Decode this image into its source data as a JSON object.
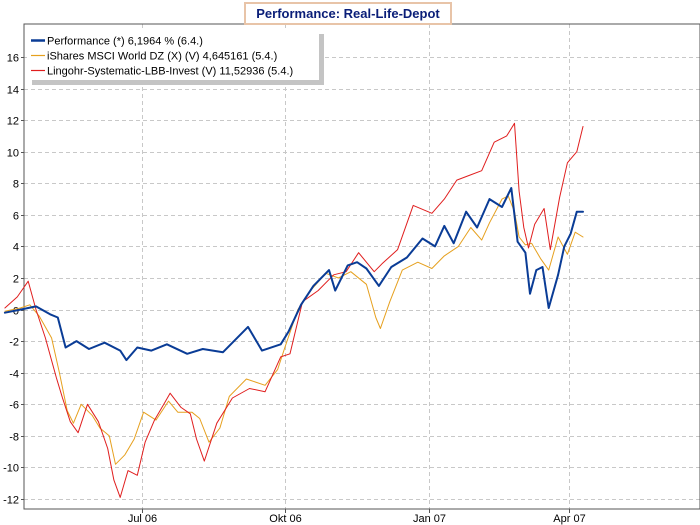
{
  "chart_data": {
    "type": "line",
    "title": "Performance: Real-Life-Depot",
    "xlabel": "",
    "ylabel": "",
    "ylim": [
      -12.5,
      18
    ],
    "xlim": [
      "2006-04-04",
      "2007-05-31"
    ],
    "yticks": [
      16,
      14,
      12,
      10,
      8,
      6,
      4,
      2,
      0,
      -2,
      -4,
      -6,
      -8,
      -10,
      -12
    ],
    "xticks": [
      {
        "label": "Jul 06",
        "date": "2006-07-01"
      },
      {
        "label": "Okt 06",
        "date": "2006-10-01"
      },
      {
        "label": "Jan 07",
        "date": "2007-01-01"
      },
      {
        "label": "Apr 07",
        "date": "2007-04-01"
      }
    ],
    "grid": true,
    "legend_placement": "top-left",
    "series": [
      {
        "name": "Performance (*) 6,1964 % (6.4.)",
        "color": "#0a3c96",
        "width": 2,
        "points": [
          [
            "2006-04-04",
            -0.2
          ],
          [
            "2006-04-14",
            0.0
          ],
          [
            "2006-04-24",
            0.2
          ],
          [
            "2006-05-03",
            -0.3
          ],
          [
            "2006-05-08",
            -0.5
          ],
          [
            "2006-05-13",
            -2.4
          ],
          [
            "2006-05-20",
            -2.0
          ],
          [
            "2006-05-28",
            -2.5
          ],
          [
            "2006-06-07",
            -2.1
          ],
          [
            "2006-06-17",
            -2.6
          ],
          [
            "2006-06-21",
            -3.2
          ],
          [
            "2006-06-28",
            -2.4
          ],
          [
            "2006-07-07",
            -2.6
          ],
          [
            "2006-07-17",
            -2.2
          ],
          [
            "2006-07-30",
            -2.8
          ],
          [
            "2006-08-09",
            -2.5
          ],
          [
            "2006-08-22",
            -2.7
          ],
          [
            "2006-09-07",
            -1.1
          ],
          [
            "2006-09-16",
            -2.6
          ],
          [
            "2006-09-28",
            -2.2
          ],
          [
            "2006-10-03",
            -1.4
          ],
          [
            "2006-10-11",
            0.3
          ],
          [
            "2006-10-19",
            1.5
          ],
          [
            "2006-10-29",
            2.5
          ],
          [
            "2006-11-02",
            1.2
          ],
          [
            "2006-11-10",
            2.8
          ],
          [
            "2006-11-16",
            3.0
          ],
          [
            "2006-11-22",
            2.6
          ],
          [
            "2006-11-30",
            1.5
          ],
          [
            "2006-12-08",
            2.7
          ],
          [
            "2006-12-18",
            3.3
          ],
          [
            "2006-12-28",
            4.5
          ],
          [
            "2007-01-05",
            4.0
          ],
          [
            "2007-01-11",
            5.3
          ],
          [
            "2007-01-17",
            4.2
          ],
          [
            "2007-01-25",
            6.2
          ],
          [
            "2007-02-01",
            5.2
          ],
          [
            "2007-02-09",
            7.0
          ],
          [
            "2007-02-17",
            6.5
          ],
          [
            "2007-02-23",
            7.7
          ],
          [
            "2007-02-27",
            4.3
          ],
          [
            "2007-03-04",
            3.6
          ],
          [
            "2007-03-07",
            1.0
          ],
          [
            "2007-03-11",
            2.5
          ],
          [
            "2007-03-15",
            2.7
          ],
          [
            "2007-03-19",
            0.1
          ],
          [
            "2007-03-25",
            2.2
          ],
          [
            "2007-03-29",
            4.0
          ],
          [
            "2007-04-02",
            4.8
          ],
          [
            "2007-04-06",
            6.2
          ],
          [
            "2007-04-10",
            6.2
          ]
        ]
      },
      {
        "name": "iShares MSCI World DZ (X) (V) 4,645161 (5.4.)",
        "color": "#e6a01e",
        "width": 1,
        "points": [
          [
            "2006-04-04",
            -0.1
          ],
          [
            "2006-04-14",
            0.1
          ],
          [
            "2006-04-20",
            0.3
          ],
          [
            "2006-04-26",
            -0.4
          ],
          [
            "2006-05-04",
            -1.8
          ],
          [
            "2006-05-09",
            -4.0
          ],
          [
            "2006-05-14",
            -6.4
          ],
          [
            "2006-05-18",
            -7.2
          ],
          [
            "2006-05-23",
            -6.0
          ],
          [
            "2006-05-30",
            -6.7
          ],
          [
            "2006-06-04",
            -7.5
          ],
          [
            "2006-06-10",
            -8.0
          ],
          [
            "2006-06-14",
            -9.8
          ],
          [
            "2006-06-20",
            -9.2
          ],
          [
            "2006-06-26",
            -8.2
          ],
          [
            "2006-07-02",
            -6.5
          ],
          [
            "2006-07-10",
            -7.0
          ],
          [
            "2006-07-18",
            -5.8
          ],
          [
            "2006-07-24",
            -6.5
          ],
          [
            "2006-08-02",
            -6.5
          ],
          [
            "2006-08-07",
            -6.9
          ],
          [
            "2006-08-13",
            -8.4
          ],
          [
            "2006-08-20",
            -7.5
          ],
          [
            "2006-08-26",
            -5.5
          ],
          [
            "2006-09-06",
            -4.4
          ],
          [
            "2006-09-18",
            -4.8
          ],
          [
            "2006-09-26",
            -3.8
          ],
          [
            "2006-10-01",
            -2.3
          ],
          [
            "2006-10-09",
            0.0
          ],
          [
            "2006-10-18",
            1.3
          ],
          [
            "2006-10-27",
            2.3
          ],
          [
            "2006-11-04",
            2.0
          ],
          [
            "2006-11-12",
            2.4
          ],
          [
            "2006-11-22",
            1.6
          ],
          [
            "2006-11-28",
            -0.5
          ],
          [
            "2006-12-01",
            -1.2
          ],
          [
            "2006-12-07",
            0.5
          ],
          [
            "2006-12-15",
            2.5
          ],
          [
            "2006-12-25",
            3.0
          ],
          [
            "2007-01-03",
            2.6
          ],
          [
            "2007-01-11",
            3.4
          ],
          [
            "2007-01-20",
            4.0
          ],
          [
            "2007-01-28",
            5.2
          ],
          [
            "2007-02-04",
            4.4
          ],
          [
            "2007-02-09",
            5.5
          ],
          [
            "2007-02-17",
            7.0
          ],
          [
            "2007-02-21",
            7.2
          ],
          [
            "2007-02-25",
            6.2
          ],
          [
            "2007-02-28",
            4.6
          ],
          [
            "2007-03-04",
            4.1
          ],
          [
            "2007-03-08",
            4.2
          ],
          [
            "2007-03-14",
            3.2
          ],
          [
            "2007-03-19",
            2.5
          ],
          [
            "2007-03-25",
            4.6
          ],
          [
            "2007-03-31",
            3.5
          ],
          [
            "2007-04-05",
            4.9
          ],
          [
            "2007-04-10",
            4.6
          ]
        ]
      },
      {
        "name": "Lingohr-Systematic-LBB-Invest (V) 11,52936 (5.4.)",
        "color": "#e01e1e",
        "width": 1,
        "points": [
          [
            "2006-04-04",
            0.1
          ],
          [
            "2006-04-12",
            0.8
          ],
          [
            "2006-04-19",
            1.8
          ],
          [
            "2006-04-24",
            0.0
          ],
          [
            "2006-04-30",
            -1.8
          ],
          [
            "2006-05-07",
            -4.3
          ],
          [
            "2006-05-11",
            -5.6
          ],
          [
            "2006-05-16",
            -7.1
          ],
          [
            "2006-05-21",
            -7.8
          ],
          [
            "2006-05-27",
            -6.0
          ],
          [
            "2006-06-03",
            -7.1
          ],
          [
            "2006-06-09",
            -8.8
          ],
          [
            "2006-06-13",
            -10.8
          ],
          [
            "2006-06-17",
            -11.9
          ],
          [
            "2006-06-22",
            -10.2
          ],
          [
            "2006-06-28",
            -10.5
          ],
          [
            "2006-07-03",
            -8.4
          ],
          [
            "2006-07-09",
            -7.0
          ],
          [
            "2006-07-15",
            -6.0
          ],
          [
            "2006-07-19",
            -5.3
          ],
          [
            "2006-07-26",
            -6.2
          ],
          [
            "2006-08-01",
            -6.6
          ],
          [
            "2006-08-05",
            -8.2
          ],
          [
            "2006-08-10",
            -9.6
          ],
          [
            "2006-08-18",
            -7.2
          ],
          [
            "2006-08-28",
            -5.6
          ],
          [
            "2006-09-08",
            -5.0
          ],
          [
            "2006-09-18",
            -5.2
          ],
          [
            "2006-09-28",
            -3.0
          ],
          [
            "2006-10-04",
            -2.8
          ],
          [
            "2006-10-12",
            0.5
          ],
          [
            "2006-10-22",
            1.2
          ],
          [
            "2006-11-01",
            2.2
          ],
          [
            "2006-11-09",
            2.4
          ],
          [
            "2006-11-17",
            3.6
          ],
          [
            "2006-11-27",
            2.4
          ],
          [
            "2006-12-02",
            2.9
          ],
          [
            "2006-12-12",
            3.8
          ],
          [
            "2006-12-22",
            6.6
          ],
          [
            "2007-01-03",
            6.1
          ],
          [
            "2007-01-11",
            7.0
          ],
          [
            "2007-01-19",
            8.2
          ],
          [
            "2007-01-27",
            8.5
          ],
          [
            "2007-02-04",
            8.8
          ],
          [
            "2007-02-12",
            10.6
          ],
          [
            "2007-02-20",
            11.0
          ],
          [
            "2007-02-25",
            11.8
          ],
          [
            "2007-02-28",
            7.5
          ],
          [
            "2007-03-03",
            5.2
          ],
          [
            "2007-03-06",
            3.9
          ],
          [
            "2007-03-10",
            5.4
          ],
          [
            "2007-03-16",
            6.4
          ],
          [
            "2007-03-20",
            3.8
          ],
          [
            "2007-03-26",
            7.1
          ],
          [
            "2007-03-31",
            9.3
          ],
          [
            "2007-04-06",
            10.0
          ],
          [
            "2007-04-10",
            11.6
          ]
        ]
      }
    ]
  }
}
